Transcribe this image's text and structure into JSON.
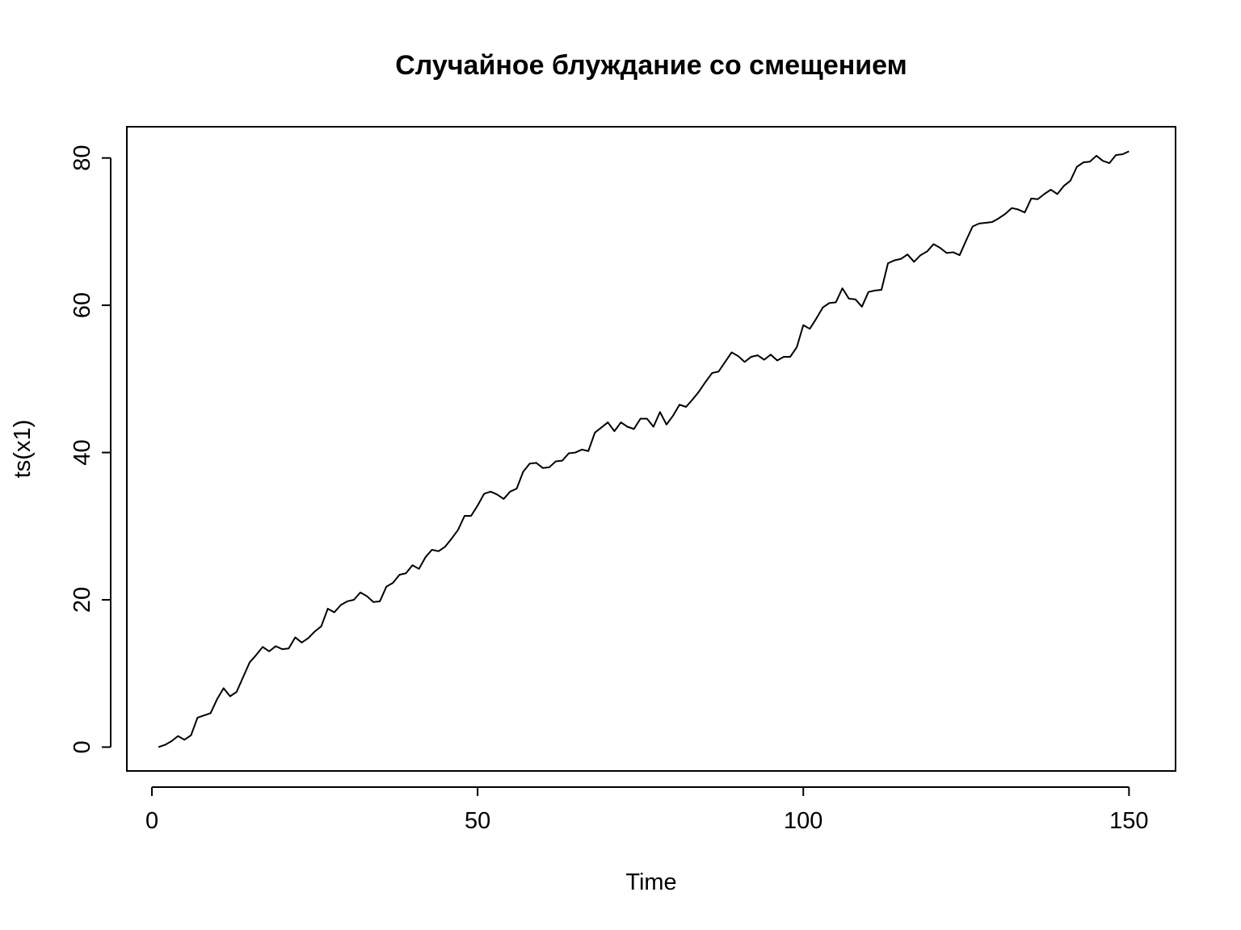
{
  "chart_data": {
    "type": "line",
    "title": "Случайное блуждание со смещением",
    "xlabel": "Time",
    "ylabel": "ts(x1)",
    "xlim": [
      -3.85,
      157.15
    ],
    "ylim": [
      -3.24,
      84.24
    ],
    "x_ticks": [
      0,
      50,
      100,
      150
    ],
    "y_ticks": [
      0,
      20,
      40,
      60,
      80
    ],
    "grid": false,
    "series": [
      {
        "values": [
          0.0,
          0.3,
          0.8,
          1.5,
          1.0,
          1.6,
          4.0,
          4.3,
          4.6,
          6.5,
          8.0,
          6.9,
          7.5,
          9.5,
          11.5,
          12.5,
          13.6,
          13.0,
          13.7,
          13.3,
          13.4,
          14.9,
          14.2,
          14.8,
          15.7,
          16.4,
          18.8,
          18.3,
          19.3,
          19.8,
          20.0,
          21.0,
          20.5,
          19.7,
          19.8,
          21.8,
          22.3,
          23.4,
          23.6,
          24.7,
          24.2,
          25.8,
          26.8,
          26.6,
          27.2,
          28.3,
          29.5,
          31.4,
          31.4,
          32.8,
          34.4,
          34.7,
          34.3,
          33.7,
          34.7,
          35.1,
          37.4,
          38.5,
          38.6,
          37.9,
          38.0,
          38.8,
          38.9,
          39.9,
          40.0,
          40.4,
          40.2,
          42.7,
          43.4,
          44.1,
          42.9,
          44.1,
          43.5,
          43.2,
          44.6,
          44.6,
          43.5,
          45.5,
          43.8,
          45.0,
          46.5,
          46.2,
          47.2,
          48.3,
          49.6,
          50.8,
          51.0,
          52.3,
          53.6,
          53.1,
          52.3,
          53.0,
          53.2,
          52.6,
          53.3,
          52.5,
          53.0,
          53.0,
          54.3,
          57.3,
          56.8,
          58.2,
          59.7,
          60.3,
          60.4,
          62.3,
          60.9,
          60.8,
          59.8,
          61.8,
          62.0,
          62.1,
          65.7,
          66.1,
          66.3,
          66.9,
          65.9,
          66.8,
          67.3,
          68.3,
          67.8,
          67.1,
          67.2,
          66.8,
          68.8,
          70.7,
          71.1,
          71.2,
          71.3,
          71.8,
          72.4,
          73.2,
          73.0,
          72.6,
          74.5,
          74.4,
          75.1,
          75.7,
          75.1,
          76.2,
          76.9,
          78.8,
          79.4,
          79.5,
          80.3,
          79.6,
          79.3,
          80.4,
          80.5,
          80.9
        ]
      }
    ]
  }
}
